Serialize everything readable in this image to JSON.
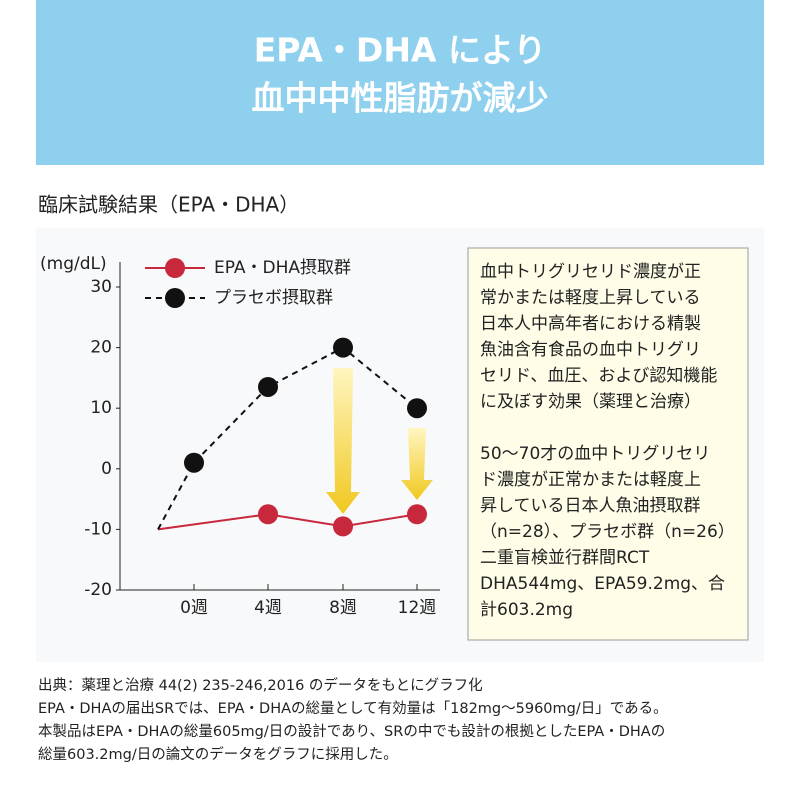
{
  "header": {
    "title_lines": [
      "EPA・DHA により",
      "血中中性脂肪が減少"
    ]
  },
  "subtitle": "臨床試験結果（EPA・DHA）",
  "chart_data": {
    "type": "line",
    "y_label": "(mg/dL)",
    "categories": [
      null,
      "0週",
      "4週",
      "8週",
      "12週"
    ],
    "series": [
      {
        "name": "EPA・DHA摂取群",
        "color": "#c8283c",
        "style": "solid",
        "values": [
          -10,
          null,
          -7.5,
          -9.5,
          -7.5
        ]
      },
      {
        "name": "プラセボ摂取群",
        "color": "#111111",
        "style": "dashed",
        "values": [
          -10,
          1,
          13.5,
          20,
          10
        ]
      }
    ],
    "ylim": [
      -20,
      30
    ],
    "yticks": [
      -20,
      -10,
      0,
      10,
      20,
      30
    ]
  },
  "note": {
    "paragraphs": [
      [
        "血中トリグリセリド濃度が正",
        "常かまたは軽度上昇している",
        "日本人中高年者における精製",
        "魚油含有食品の血中トリグリ",
        "セリド、血圧、および認知機能",
        "に及ぼす効果（薬理と治療）"
      ],
      [
        "50〜70才の血中トリグリセリ",
        "ド濃度が正常かまたは軽度上",
        "昇している日本人魚油摂取群",
        "（n=28）、プラセボ群（n=26）",
        "二重盲検並行群間RCT",
        " DHA544mg、EPA59.2mg、合",
        "計603.2mg"
      ]
    ]
  },
  "footer": {
    "lines": [
      "出典：薬理と治療 44(2) 235-246,2016 のデータをもとにグラフ化",
      "EPA・DHAの届出SRでは、EPA・DHAの総量として有効量は「182mg〜5960mg/日」である。",
      "本製品はEPA・DHAの総量605mg/日の設計であり、SRの中でも設計の根拠としたEPA・DHAの",
      "総量603.2mg/日の論文のデータをグラフに採用した。"
    ]
  }
}
